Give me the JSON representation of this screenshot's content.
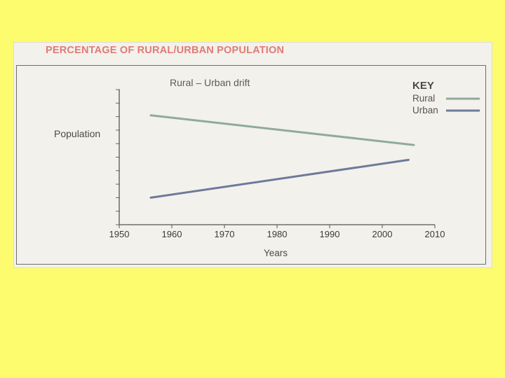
{
  "title": "PERCENTAGE OF RURAL/URBAN POPULATION",
  "chart_data": {
    "type": "line",
    "subtitle": "Rural – Urban drift",
    "xlabel": "Years",
    "ylabel": "Population",
    "xlim": [
      1950,
      2010
    ],
    "ylim": [
      0,
      10
    ],
    "x_ticks": [
      1950,
      1960,
      1970,
      1980,
      1990,
      2000,
      2010
    ],
    "legend_title": "KEY",
    "legend_position": "top-right",
    "grid": false,
    "series": [
      {
        "name": "Rural",
        "color": "#8faa9c",
        "x": [
          1956,
          2006
        ],
        "y": [
          8.1,
          5.9
        ]
      },
      {
        "name": "Urban",
        "color": "#6e7a9a",
        "x": [
          1956,
          2005
        ],
        "y": [
          2.0,
          4.8
        ]
      }
    ]
  }
}
